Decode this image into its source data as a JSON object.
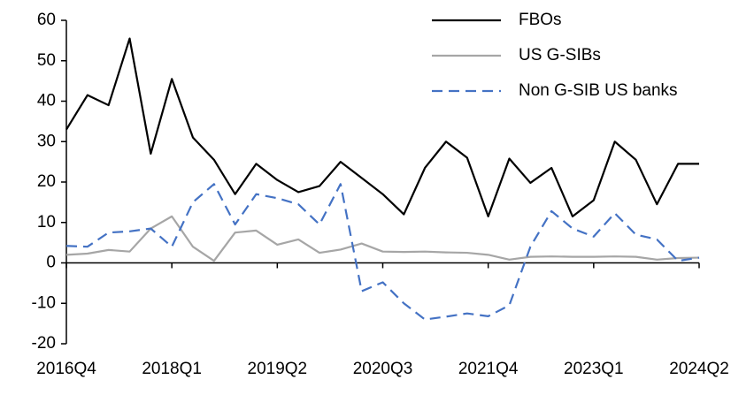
{
  "chart_data": {
    "type": "line",
    "categories": [
      "2016Q4",
      null,
      null,
      null,
      null,
      "2018Q1",
      null,
      null,
      null,
      null,
      "2019Q2",
      null,
      null,
      null,
      null,
      "2020Q3",
      null,
      null,
      null,
      null,
      "2021Q4",
      null,
      null,
      null,
      null,
      "2023Q1",
      null,
      null,
      null,
      null,
      "2024Q2"
    ],
    "series": [
      {
        "name": "FBOs",
        "color": "#000000",
        "line_style": "solid",
        "values": [
          33,
          41.5,
          39,
          55.5,
          27,
          45.5,
          31,
          25.5,
          17,
          24.5,
          20.5,
          17.5,
          19,
          25,
          21,
          17,
          12,
          23.5,
          30,
          26,
          11.5,
          25.8,
          19.8,
          23.5,
          11.5,
          15.5,
          30,
          25.5,
          14.5,
          24.5,
          24.5
        ]
      },
      {
        "name": "US G-SIBs",
        "color": "#a6a6a6",
        "line_style": "solid",
        "values": [
          2,
          2.3,
          3.2,
          2.8,
          8.5,
          11.5,
          4,
          0.5,
          7.5,
          8,
          4.5,
          5.8,
          2.5,
          3.3,
          4.8,
          2.8,
          2.7,
          2.8,
          2.6,
          2.5,
          2,
          0.8,
          1.5,
          1.6,
          1.5,
          1.5,
          1.6,
          1.5,
          0.8,
          1.2,
          1.3
        ]
      },
      {
        "name": "Non G-SIB US banks",
        "color": "#4472c4",
        "line_style": "dashed",
        "values": [
          4.2,
          4,
          7.5,
          7.8,
          8.5,
          4,
          15,
          19.5,
          9.5,
          17,
          16,
          14.5,
          9.5,
          19.5,
          -7,
          -4.8,
          -10,
          -14,
          -13.3,
          -12.5,
          -13.2,
          -10.5,
          4,
          12.8,
          8.5,
          6.5,
          12.3,
          7,
          5.8,
          0.5,
          1.3
        ]
      }
    ],
    "ylim": [
      -20,
      60
    ],
    "yticks": [
      -20,
      -10,
      0,
      10,
      20,
      30,
      40,
      50,
      60
    ],
    "grid": false,
    "legend": "top-right"
  }
}
